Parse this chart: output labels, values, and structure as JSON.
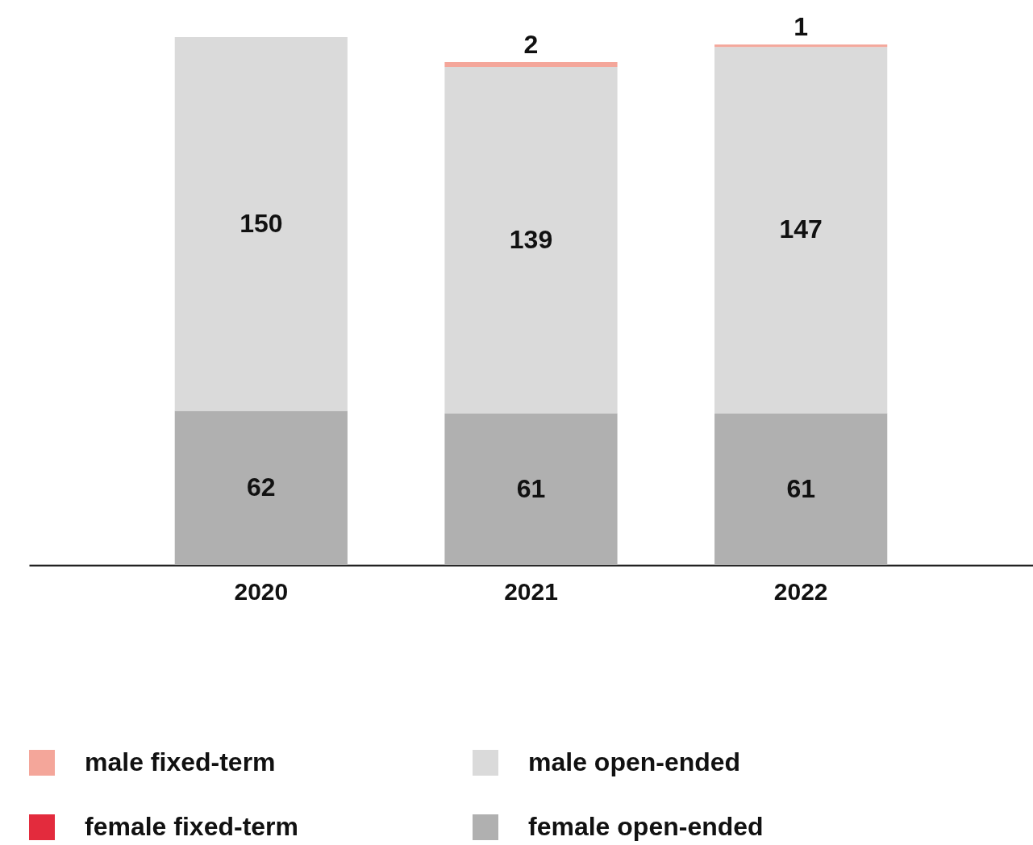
{
  "chart_data": {
    "type": "bar",
    "stacked": true,
    "categories": [
      "2020",
      "2021",
      "2022"
    ],
    "series": [
      {
        "name": "female open-ended",
        "color": "#b0b0b0",
        "values": [
          62,
          61,
          61
        ]
      },
      {
        "name": "male open-ended",
        "color": "#dadada",
        "values": [
          150,
          139,
          147
        ]
      },
      {
        "name": "female fixed-term",
        "color": "#e32b3d",
        "values": [
          null,
          null,
          null
        ]
      },
      {
        "name": "male fixed-term",
        "color": "#f4a69a",
        "values": [
          null,
          2,
          1
        ]
      }
    ],
    "data_labels": true,
    "legend": "bottom"
  }
}
